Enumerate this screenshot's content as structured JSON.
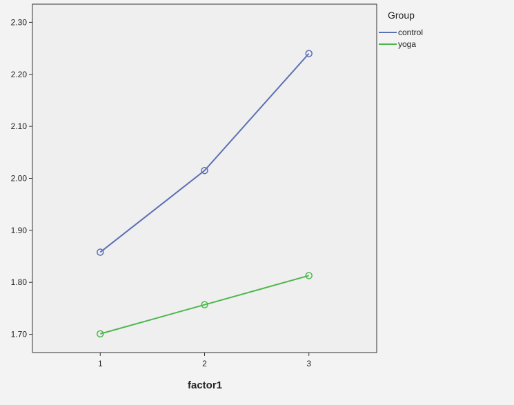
{
  "chart_data": {
    "type": "line",
    "x": [
      1,
      2,
      3
    ],
    "x_tick_labels": [
      "1",
      "2",
      "3"
    ],
    "xlabel": "factor1",
    "ylabel": "",
    "xlim": [
      0.35,
      3.65
    ],
    "ylim": [
      1.665,
      2.335
    ],
    "y_ticks": [
      1.7,
      1.8,
      1.9,
      2.0,
      2.1,
      2.2,
      2.3
    ],
    "y_tick_labels": [
      "1.70",
      "1.80",
      "1.90",
      "2.00",
      "2.10",
      "2.20",
      "2.30"
    ],
    "grid": false,
    "legend": {
      "title": "Group",
      "placement": "right"
    },
    "series": [
      {
        "name": "control",
        "values": [
          1.858,
          2.015,
          2.24
        ],
        "color": "#5b6fb5"
      },
      {
        "name": "yoga",
        "values": [
          1.701,
          1.757,
          1.813
        ],
        "color": "#4cb84c"
      }
    ]
  }
}
